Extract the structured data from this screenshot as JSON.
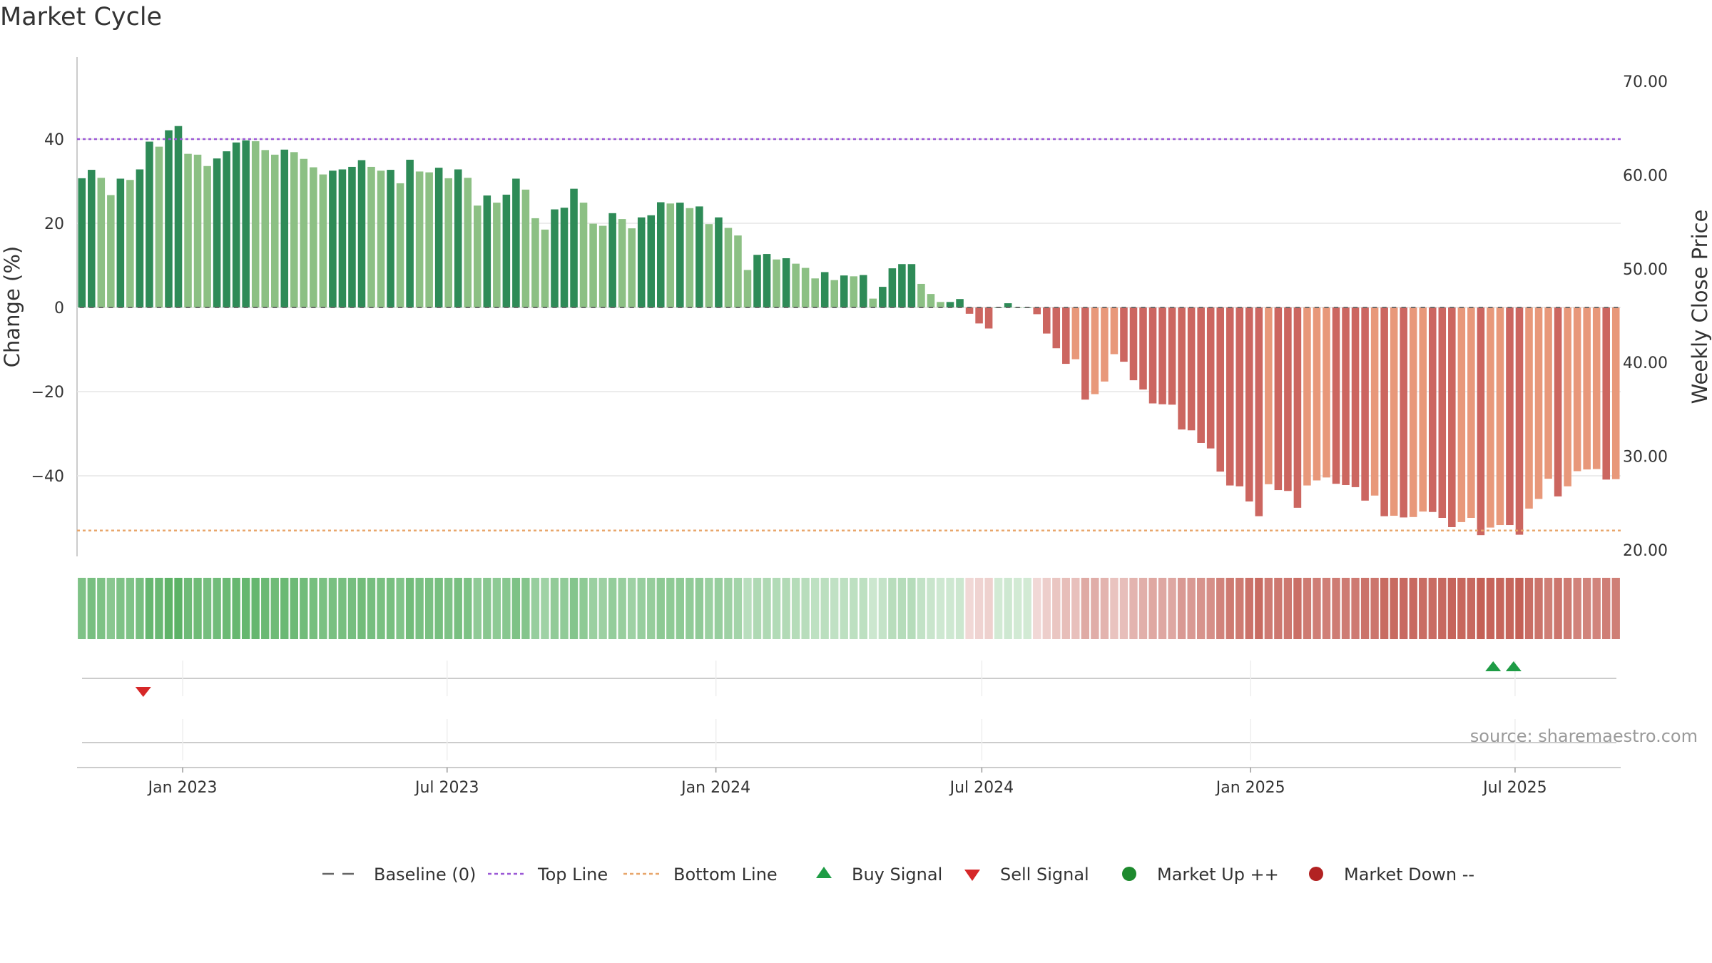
{
  "chart_data": {
    "type": "bar",
    "title": "Market Cycle",
    "ylabel": "Change (%)",
    "y2label": "Weekly Close Price",
    "ylim": [
      -60,
      60
    ],
    "yticks": [
      40,
      20,
      0,
      -20,
      -40
    ],
    "ytick_labels": [
      "40",
      "20",
      "0",
      "−20",
      "−40"
    ],
    "y2ticks": [
      "70.00",
      "60.00",
      "50.00",
      "40.00",
      "30.00",
      "20.00"
    ],
    "xticks": [
      {
        "label": "Jan 2023",
        "date": "2023-01-01"
      },
      {
        "label": "Jul 2023",
        "date": "2023-07-01"
      },
      {
        "label": "Jan 2024",
        "date": "2024-01-01"
      },
      {
        "label": "Jul 2024",
        "date": "2024-07-01"
      },
      {
        "label": "Jan 2025",
        "date": "2025-01-01"
      },
      {
        "label": "Jul 2025",
        "date": "2025-07-01"
      }
    ],
    "x_start": "2022-10-24",
    "x_end": "2025-09-08",
    "top_line": 40,
    "bottom_line": -53,
    "series": [
      {
        "name": "Change (%)",
        "values": [
          30.7,
          32.7,
          30.8,
          26.7,
          30.6,
          30.3,
          32.8,
          39.4,
          38.2,
          42.1,
          43.1,
          36.5,
          36.3,
          33.6,
          35.4,
          37.1,
          39.2,
          39.7,
          39.5,
          37.4,
          36.3,
          37.5,
          36.9,
          35.3,
          33.3,
          31.6,
          32.5,
          32.8,
          33.4,
          35.0,
          33.4,
          32.5,
          32.7,
          29.5,
          35.1,
          32.3,
          32.1,
          33.2,
          30.7,
          32.8,
          30.8,
          24.2,
          26.6,
          24.9,
          26.8,
          30.6,
          28.0,
          21.2,
          18.5,
          23.3,
          23.7,
          28.2,
          24.9,
          19.9,
          19.4,
          22.4,
          21.0,
          18.8,
          21.4,
          21.9,
          25.0,
          24.7,
          24.9,
          23.6,
          24.0,
          19.8,
          21.4,
          18.9,
          17.1,
          8.9,
          12.5,
          12.7,
          11.4,
          11.7,
          10.4,
          9.4,
          6.9,
          8.4,
          6.5,
          7.6,
          7.4,
          7.7,
          2.1,
          4.9,
          9.3,
          10.3,
          10.3,
          5.6,
          3.2,
          1.3,
          1.3,
          2.0,
          -1.5,
          -3.8,
          -5.0,
          0,
          1.0,
          0,
          0,
          -1.6,
          -6.2,
          -9.7,
          -13.4,
          -12.3,
          -21.9,
          -20.6,
          -17.6,
          -11.1,
          -12.9,
          -17.3,
          -19.5,
          -22.8,
          -23.0,
          -23.1,
          -29.0,
          -29.2,
          -32.2,
          -33.5,
          -39.0,
          -42.3,
          -42.5,
          -46.1,
          -49.6,
          -42.0,
          -43.4,
          -43.6,
          -47.6,
          -42.3,
          -41.1,
          -40.4,
          -41.9,
          -42.2,
          -42.7,
          -45.9,
          -44.7,
          -49.6,
          -49.5,
          -49.9,
          -49.8,
          -48.5,
          -48.6,
          -50.0,
          -52.2,
          -51.0,
          -50.0,
          -54.1,
          -52.3,
          -51.7,
          -51.7,
          -54.0,
          -47.8,
          -45.5,
          -40.7,
          -44.9,
          -42.5,
          -38.9,
          -38.5,
          -38.4,
          -40.9,
          -40.8
        ]
      }
    ],
    "marker_signals": [
      {
        "name": "Sell Signal",
        "dates": [
          "2022-12-05"
        ]
      },
      {
        "name": "Buy Signal",
        "dates": [
          "2025-06-16",
          "2025-06-30"
        ]
      }
    ]
  },
  "legend": [
    {
      "label": "Baseline (0)",
      "icon": "dash-line",
      "color": "#666666"
    },
    {
      "label": "Top Line",
      "icon": "dotted-line",
      "color": "#9b59d6"
    },
    {
      "label": "Bottom Line",
      "icon": "dotted-line",
      "color": "#e8a66b"
    },
    {
      "label": "Buy Signal",
      "icon": "triangle-up",
      "color": "#1e9c45"
    },
    {
      "label": "Sell Signal",
      "icon": "triangle-down",
      "color": "#d62728"
    },
    {
      "label": "Market Up ++",
      "icon": "circle",
      "color": "#1e8a2e"
    },
    {
      "label": "Market Down --",
      "icon": "circle",
      "color": "#b22222"
    }
  ],
  "source": "source: sharemaestro.com",
  "colors": {
    "up_dark": "#2e8b57",
    "up_light": "#8cc084",
    "down_dark": "#cc6660",
    "down_light": "#e8987a"
  }
}
